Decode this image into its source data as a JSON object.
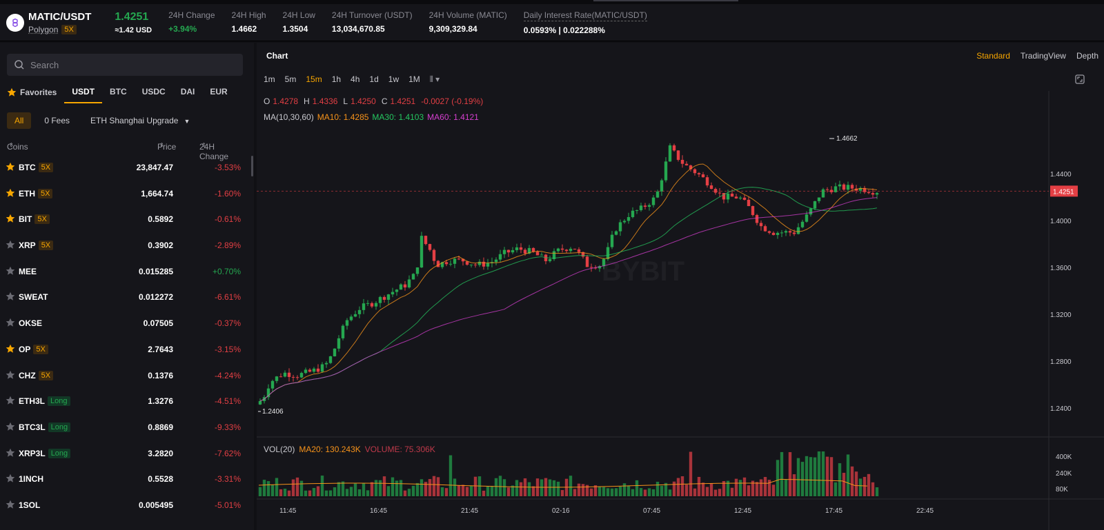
{
  "header": {
    "pair": "MATIC/USDT",
    "network": "Polygon",
    "leverage": "5X",
    "last_price": "1.4251",
    "usd_equiv": "≈1.42 USD",
    "stats": [
      {
        "label": "24H Change",
        "value": "+3.94%",
        "up": true
      },
      {
        "label": "24H High",
        "value": "1.4662"
      },
      {
        "label": "24H Low",
        "value": "1.3504"
      },
      {
        "label": "24H Turnover (USDT)",
        "value": "13,034,670.85"
      },
      {
        "label": "24H Volume (MATIC)",
        "value": "9,309,329.84"
      },
      {
        "label": "Daily Interest Rate(MATIC/USDT)",
        "value": "0.0593% | 0.022288%"
      }
    ]
  },
  "search": {
    "placeholder": "Search"
  },
  "quote_tabs": [
    "Favorites",
    "USDT",
    "BTC",
    "USDC",
    "DAI",
    "EUR"
  ],
  "filter_tabs": [
    "All",
    "0 Fees",
    "ETH Shanghai Upgrade"
  ],
  "columns": {
    "coins": "Coins",
    "price": "Price",
    "change": "24H Change"
  },
  "coins": [
    {
      "name": "BTC",
      "tag": "5X",
      "tagtype": "lev",
      "fav": true,
      "price": "23,847.47",
      "change": "-3.53%"
    },
    {
      "name": "ETH",
      "tag": "5X",
      "tagtype": "lev",
      "fav": true,
      "price": "1,664.74",
      "change": "-1.60%"
    },
    {
      "name": "BIT",
      "tag": "5X",
      "tagtype": "lev",
      "fav": true,
      "price": "0.5892",
      "change": "-0.61%"
    },
    {
      "name": "XRP",
      "tag": "5X",
      "tagtype": "lev",
      "fav": false,
      "price": "0.3902",
      "change": "-2.89%"
    },
    {
      "name": "MEE",
      "tag": "",
      "tagtype": "",
      "fav": false,
      "price": "0.015285",
      "change": "+0.70%"
    },
    {
      "name": "SWEAT",
      "tag": "",
      "tagtype": "",
      "fav": false,
      "price": "0.012272",
      "change": "-6.61%"
    },
    {
      "name": "OKSE",
      "tag": "",
      "tagtype": "",
      "fav": false,
      "price": "0.07505",
      "change": "-0.37%"
    },
    {
      "name": "OP",
      "tag": "5X",
      "tagtype": "lev",
      "fav": true,
      "price": "2.7643",
      "change": "-3.15%"
    },
    {
      "name": "CHZ",
      "tag": "5X",
      "tagtype": "lev",
      "fav": false,
      "price": "0.1376",
      "change": "-4.24%"
    },
    {
      "name": "ETH3L",
      "tag": "Long",
      "tagtype": "long",
      "fav": false,
      "price": "1.3276",
      "change": "-4.51%"
    },
    {
      "name": "BTC3L",
      "tag": "Long",
      "tagtype": "long",
      "fav": false,
      "price": "0.8869",
      "change": "-9.33%"
    },
    {
      "name": "XRP3L",
      "tag": "Long",
      "tagtype": "long",
      "fav": false,
      "price": "3.2820",
      "change": "-7.62%"
    },
    {
      "name": "1INCH",
      "tag": "",
      "tagtype": "",
      "fav": false,
      "price": "0.5528",
      "change": "-3.31%"
    },
    {
      "name": "1SOL",
      "tag": "",
      "tagtype": "",
      "fav": false,
      "price": "0.005495",
      "change": "-5.01%"
    }
  ],
  "chart": {
    "title": "Chart",
    "views": [
      "Standard",
      "TradingView",
      "Depth"
    ],
    "intervals": [
      "1m",
      "5m",
      "15m",
      "1h",
      "4h",
      "1d",
      "1w",
      "1M"
    ],
    "active_interval": "15m",
    "ohlc": {
      "o": "1.4278",
      "h": "1.4336",
      "l": "1.4250",
      "c": "1.4251",
      "chg": "-0.0027 (-0.19%)"
    },
    "ma_label": "MA(10,30,60)",
    "ma10": "MA10: 1.4285",
    "ma30": "MA30: 1.4103",
    "ma60": "MA60: 1.4121",
    "vol_label": "VOL(20)",
    "vol_ma20": "MA20: 130.243K",
    "vol_value": "VOLUME: 75.306K",
    "price_axis": [
      "1.4400",
      "1.4000",
      "1.3600",
      "1.3200",
      "1.2800",
      "1.2400"
    ],
    "vol_axis": [
      "400K",
      "240K",
      "80K"
    ],
    "time_axis": [
      "11:45",
      "16:45",
      "21:45",
      "02-16",
      "07:45",
      "12:45",
      "17:45",
      "22:45"
    ],
    "high_marker": "1.4662",
    "low_marker": "1.2406",
    "current_price_tag": "1.4251",
    "colors": {
      "up": "#25a750",
      "down": "#e33f44",
      "ma10": "#f7931a",
      "ma30": "#25c760",
      "ma60": "#d63fd0",
      "accent": "#f7a600"
    }
  }
}
